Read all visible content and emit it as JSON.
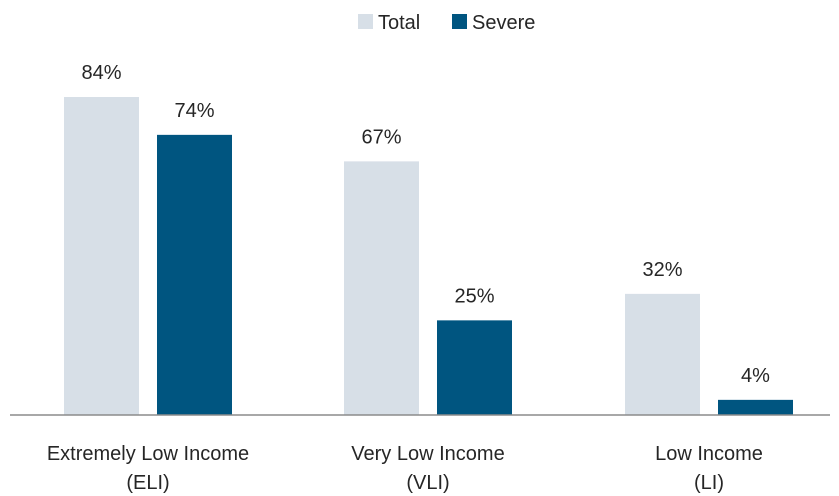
{
  "chart_data": {
    "type": "bar",
    "categories": [
      [
        "Extremely Low Income",
        "(ELI)"
      ],
      [
        "Very Low Income",
        "(VLI)"
      ],
      [
        "Low Income",
        "(LI)"
      ]
    ],
    "series": [
      {
        "name": "Total",
        "values": [
          84,
          67,
          32
        ],
        "labels": [
          "84%",
          "67%",
          "32%"
        ],
        "color": "#d7dfe7"
      },
      {
        "name": "Severe",
        "values": [
          74,
          25,
          4
        ],
        "labels": [
          "74%",
          "25%",
          "4%"
        ],
        "color": "#005580"
      }
    ],
    "ylim": [
      0,
      84
    ],
    "grid": false,
    "legend_position": "top-center",
    "axis_color": "#8c8c8c"
  }
}
